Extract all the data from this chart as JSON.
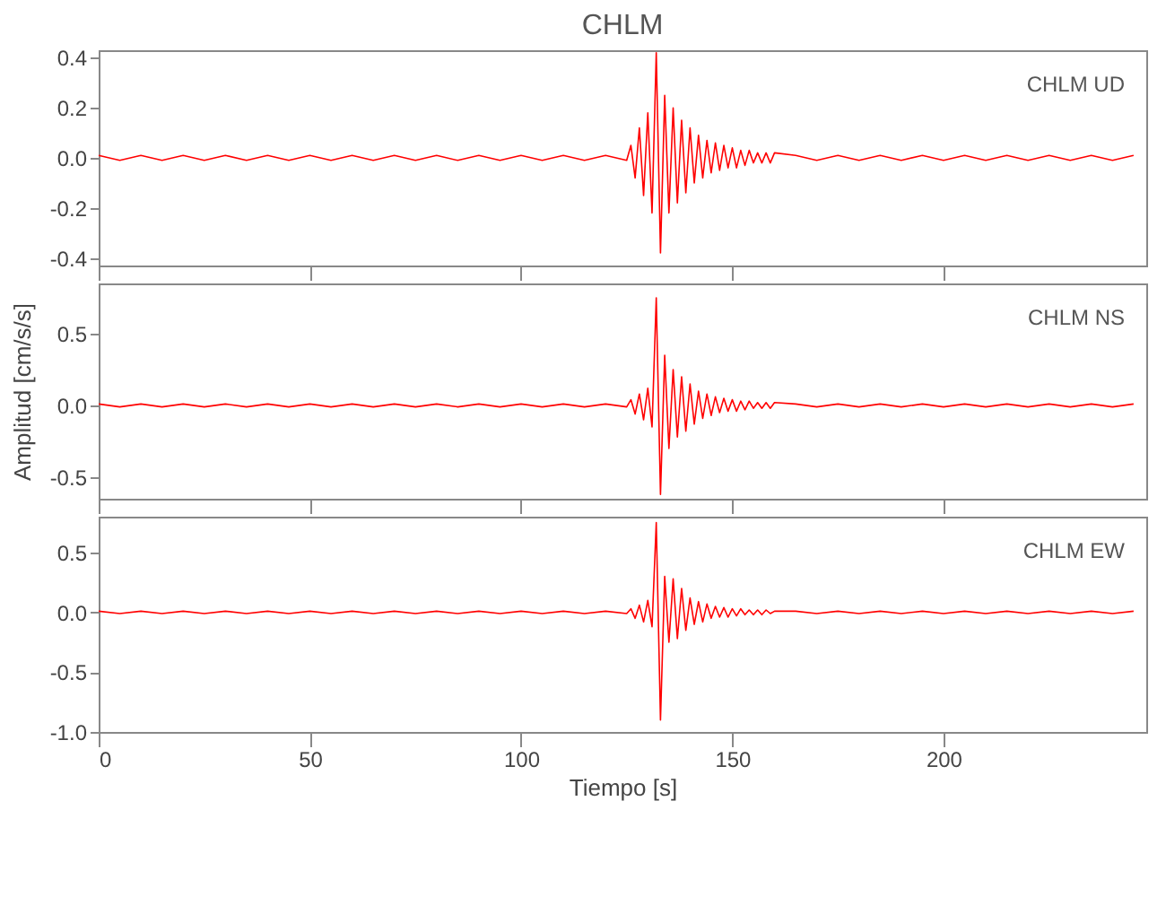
{
  "chart_data": [
    {
      "type": "line",
      "title": "CHLM",
      "annotations": [
        "CHLM   UD"
      ],
      "xlim": [
        0,
        248
      ],
      "xticks": [
        0,
        50,
        100,
        150,
        200
      ],
      "ylim": [
        -0.43,
        0.43
      ],
      "yticks": [
        {
          "value": -0.4,
          "label": "-0.4"
        },
        {
          "value": -0.2,
          "label": "-0.2"
        },
        {
          "value": 0,
          "label": "0.0"
        },
        {
          "value": 0.2,
          "label": "0.2"
        },
        {
          "value": 0.4,
          "label": "0.4"
        }
      ],
      "tick_labels": "y",
      "grid": false,
      "x": [
        0,
        5,
        10,
        15,
        20,
        25,
        30,
        35,
        40,
        45,
        50,
        55,
        60,
        65,
        70,
        75,
        80,
        85,
        90,
        95,
        100,
        105,
        110,
        115,
        120,
        125,
        126,
        127,
        128,
        129,
        130,
        131,
        132,
        133,
        134,
        135,
        136,
        137,
        138,
        139,
        140,
        141,
        142,
        143,
        144,
        145,
        146,
        147,
        148,
        149,
        150,
        151,
        152,
        153,
        154,
        155,
        156,
        157,
        158,
        159,
        160,
        165,
        170,
        175,
        180,
        185,
        190,
        195,
        200,
        205,
        210,
        215,
        220,
        225,
        230,
        235,
        240,
        245
      ],
      "series": [
        {
          "color": "#ff0000",
          "values": [
            0.01,
            -0.01,
            0.01,
            -0.01,
            0.01,
            -0.01,
            0.01,
            -0.01,
            0.01,
            -0.01,
            0.01,
            -0.01,
            0.01,
            -0.01,
            0.01,
            -0.01,
            0.01,
            -0.01,
            0.01,
            -0.01,
            0.01,
            -0.01,
            0.01,
            -0.01,
            0.01,
            -0.01,
            0.05,
            -0.08,
            0.12,
            -0.15,
            0.18,
            -0.22,
            0.42,
            -0.38,
            0.25,
            -0.22,
            0.2,
            -0.18,
            0.15,
            -0.14,
            0.12,
            -0.1,
            0.09,
            -0.08,
            0.07,
            -0.06,
            0.06,
            -0.05,
            0.05,
            -0.04,
            0.04,
            -0.04,
            0.03,
            -0.03,
            0.03,
            -0.02,
            0.02,
            -0.02,
            0.02,
            -0.02,
            0.02,
            0.01,
            -0.01,
            0.01,
            -0.01,
            0.01,
            -0.01,
            0.01,
            -0.01,
            0.01,
            -0.01,
            0.01,
            -0.01,
            0.01,
            -0.01,
            0.01,
            -0.01,
            0.01
          ]
        }
      ]
    },
    {
      "type": "line",
      "ylabel": "Amplitud [cm/s/s]",
      "annotations": [
        "CHLM   NS"
      ],
      "xlim": [
        0,
        248
      ],
      "xticks": [
        0,
        50,
        100,
        150,
        200
      ],
      "ylim": [
        -0.65,
        0.85
      ],
      "yticks": [
        {
          "value": -0.5,
          "label": "-0.5"
        },
        {
          "value": 0,
          "label": "0.0"
        },
        {
          "value": 0.5,
          "label": "0.5"
        }
      ],
      "tick_labels": "y",
      "grid": false,
      "x": [
        0,
        5,
        10,
        15,
        20,
        25,
        30,
        35,
        40,
        45,
        50,
        55,
        60,
        65,
        70,
        75,
        80,
        85,
        90,
        95,
        100,
        105,
        110,
        115,
        120,
        125,
        126,
        127,
        128,
        129,
        130,
        131,
        132,
        133,
        134,
        135,
        136,
        137,
        138,
        139,
        140,
        141,
        142,
        143,
        144,
        145,
        146,
        147,
        148,
        149,
        150,
        151,
        152,
        153,
        154,
        155,
        156,
        157,
        158,
        159,
        160,
        165,
        170,
        175,
        180,
        185,
        190,
        195,
        200,
        205,
        210,
        215,
        220,
        225,
        230,
        235,
        240,
        245
      ],
      "series": [
        {
          "color": "#ff0000",
          "values": [
            0.01,
            -0.01,
            0.01,
            -0.01,
            0.01,
            -0.01,
            0.01,
            -0.01,
            0.01,
            -0.01,
            0.01,
            -0.01,
            0.01,
            -0.01,
            0.01,
            -0.01,
            0.01,
            -0.01,
            0.01,
            -0.01,
            0.01,
            -0.01,
            0.01,
            -0.01,
            0.01,
            -0.01,
            0.04,
            -0.06,
            0.08,
            -0.1,
            0.12,
            -0.15,
            0.75,
            -0.62,
            0.35,
            -0.3,
            0.25,
            -0.22,
            0.2,
            -0.18,
            0.15,
            -0.13,
            0.1,
            -0.09,
            0.08,
            -0.07,
            0.06,
            -0.05,
            0.05,
            -0.04,
            0.04,
            -0.04,
            0.03,
            -0.03,
            0.03,
            -0.02,
            0.02,
            -0.02,
            0.02,
            -0.02,
            0.02,
            0.01,
            -0.01,
            0.01,
            -0.01,
            0.01,
            -0.01,
            0.01,
            -0.01,
            0.01,
            -0.01,
            0.01,
            -0.01,
            0.01,
            -0.01,
            0.01,
            -0.01,
            0.01
          ]
        }
      ]
    },
    {
      "type": "line",
      "xlabel": "Tiempo [s]",
      "annotations": [
        "CHLM   EW"
      ],
      "xlim": [
        0,
        248
      ],
      "xticks": [
        0,
        50,
        100,
        150,
        200
      ],
      "ylim": [
        -1.0,
        0.8
      ],
      "yticks": [
        {
          "value": -1.0,
          "label": "-1.0"
        },
        {
          "value": -0.5,
          "label": "-0.5"
        },
        {
          "value": 0,
          "label": "0.0"
        },
        {
          "value": 0.5,
          "label": "0.5"
        }
      ],
      "grid": false,
      "x": [
        0,
        5,
        10,
        15,
        20,
        25,
        30,
        35,
        40,
        45,
        50,
        55,
        60,
        65,
        70,
        75,
        80,
        85,
        90,
        95,
        100,
        105,
        110,
        115,
        120,
        125,
        126,
        127,
        128,
        129,
        130,
        131,
        132,
        133,
        134,
        135,
        136,
        137,
        138,
        139,
        140,
        141,
        142,
        143,
        144,
        145,
        146,
        147,
        148,
        149,
        150,
        151,
        152,
        153,
        154,
        155,
        156,
        157,
        158,
        159,
        160,
        165,
        170,
        175,
        180,
        185,
        190,
        195,
        200,
        205,
        210,
        215,
        220,
        225,
        230,
        235,
        240,
        245
      ],
      "series": [
        {
          "color": "#ff0000",
          "values": [
            0.01,
            -0.01,
            0.01,
            -0.01,
            0.01,
            -0.01,
            0.01,
            -0.01,
            0.01,
            -0.01,
            0.01,
            -0.01,
            0.01,
            -0.01,
            0.01,
            -0.01,
            0.01,
            -0.01,
            0.01,
            -0.01,
            0.01,
            -0.01,
            0.01,
            -0.01,
            0.01,
            -0.01,
            0.03,
            -0.05,
            0.06,
            -0.08,
            0.1,
            -0.12,
            0.75,
            -0.9,
            0.3,
            -0.25,
            0.28,
            -0.22,
            0.2,
            -0.15,
            0.12,
            -0.1,
            0.09,
            -0.08,
            0.07,
            -0.05,
            0.05,
            -0.04,
            0.04,
            -0.04,
            0.03,
            -0.03,
            0.03,
            -0.02,
            0.02,
            -0.02,
            0.02,
            -0.02,
            0.02,
            -0.01,
            0.01,
            0.01,
            -0.01,
            0.01,
            -0.01,
            0.01,
            -0.01,
            0.01,
            -0.01,
            0.01,
            -0.01,
            0.01,
            -0.01,
            0.01,
            -0.01,
            0.01,
            -0.01,
            0.01
          ]
        }
      ]
    }
  ]
}
